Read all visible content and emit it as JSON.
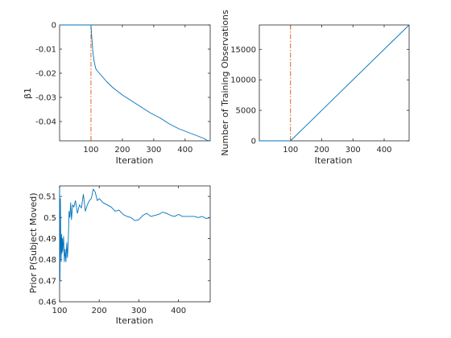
{
  "colors": {
    "series": "#0072bd",
    "marker": "#d95319",
    "axis": "#262626",
    "background": "#ffffff"
  },
  "chart_data": [
    {
      "type": "line",
      "xlabel": "Iteration",
      "ylabel": "β1",
      "xlim": [
        0,
        480
      ],
      "ylim": [
        -0.048,
        0
      ],
      "xticks": [
        100,
        200,
        300,
        400
      ],
      "yticks": [
        0,
        -0.01,
        -0.02,
        -0.03,
        -0.04
      ],
      "ytick_labels": [
        "0",
        "-0.01",
        "-0.02",
        "-0.03",
        "-0.04"
      ],
      "grid": false,
      "vline": {
        "x": 100,
        "style": "dash-dot",
        "color": "#d95319"
      },
      "series": [
        {
          "x": [
            0,
            99,
            100,
            103,
            106,
            110,
            115,
            120,
            130,
            150,
            170,
            200,
            230,
            260,
            290,
            320,
            350,
            380,
            410,
            440,
            460,
            470,
            480
          ],
          "values": [
            0,
            0,
            0,
            -0.006,
            -0.011,
            -0.015,
            -0.018,
            -0.019,
            -0.0205,
            -0.0235,
            -0.026,
            -0.029,
            -0.0315,
            -0.034,
            -0.0365,
            -0.0385,
            -0.041,
            -0.043,
            -0.0445,
            -0.046,
            -0.047,
            -0.0478,
            -0.048
          ]
        }
      ]
    },
    {
      "type": "line",
      "xlabel": "Iteration",
      "ylabel": "Number of Training Observations",
      "xlim": [
        0,
        480
      ],
      "ylim": [
        0,
        19000
      ],
      "xticks": [
        100,
        200,
        300,
        400
      ],
      "yticks": [
        0,
        5000,
        10000,
        15000
      ],
      "ytick_labels": [
        "0",
        "5000",
        "10000",
        "15000"
      ],
      "grid": false,
      "vline": {
        "x": 100,
        "style": "dash-dot",
        "color": "#d95319"
      },
      "series": [
        {
          "x": [
            0,
            100,
            480
          ],
          "values": [
            0,
            0,
            19000
          ]
        }
      ]
    },
    {
      "type": "line",
      "xlabel": "Iteration",
      "ylabel": "Prior P(Subject Moved)",
      "xlim": [
        100,
        480
      ],
      "ylim": [
        0.46,
        0.515
      ],
      "xticks": [
        100,
        200,
        300,
        400
      ],
      "yticks": [
        0.46,
        0.47,
        0.48,
        0.49,
        0.5,
        0.51
      ],
      "ytick_labels": [
        "0.46",
        "0.47",
        "0.48",
        "0.49",
        "0.5",
        "0.51"
      ],
      "grid": false,
      "series": [
        {
          "x": [
            100,
            101,
            102,
            103,
            104,
            105,
            106,
            107,
            108,
            110,
            112,
            114,
            116,
            118,
            120,
            122,
            124,
            126,
            128,
            130,
            133,
            136,
            140,
            145,
            150,
            155,
            160,
            165,
            170,
            175,
            180,
            185,
            190,
            195,
            200,
            210,
            220,
            230,
            240,
            250,
            260,
            270,
            280,
            290,
            300,
            310,
            320,
            330,
            340,
            350,
            360,
            370,
            380,
            390,
            400,
            410,
            420,
            430,
            440,
            450,
            460,
            470,
            480
          ],
          "values": [
            0.514,
            0.47,
            0.509,
            0.488,
            0.479,
            0.492,
            0.483,
            0.49,
            0.484,
            0.491,
            0.479,
            0.485,
            0.479,
            0.488,
            0.481,
            0.49,
            0.503,
            0.5,
            0.507,
            0.499,
            0.506,
            0.505,
            0.508,
            0.502,
            0.506,
            0.5045,
            0.511,
            0.503,
            0.506,
            0.508,
            0.509,
            0.5135,
            0.512,
            0.508,
            0.509,
            0.507,
            0.506,
            0.505,
            0.503,
            0.5035,
            0.5015,
            0.5005,
            0.5,
            0.4985,
            0.499,
            0.501,
            0.502,
            0.5005,
            0.501,
            0.5015,
            0.5025,
            0.502,
            0.501,
            0.5005,
            0.5015,
            0.5005,
            0.5005,
            0.5005,
            0.5005,
            0.5,
            0.5005,
            0.4995,
            0.5
          ]
        }
      ]
    }
  ]
}
